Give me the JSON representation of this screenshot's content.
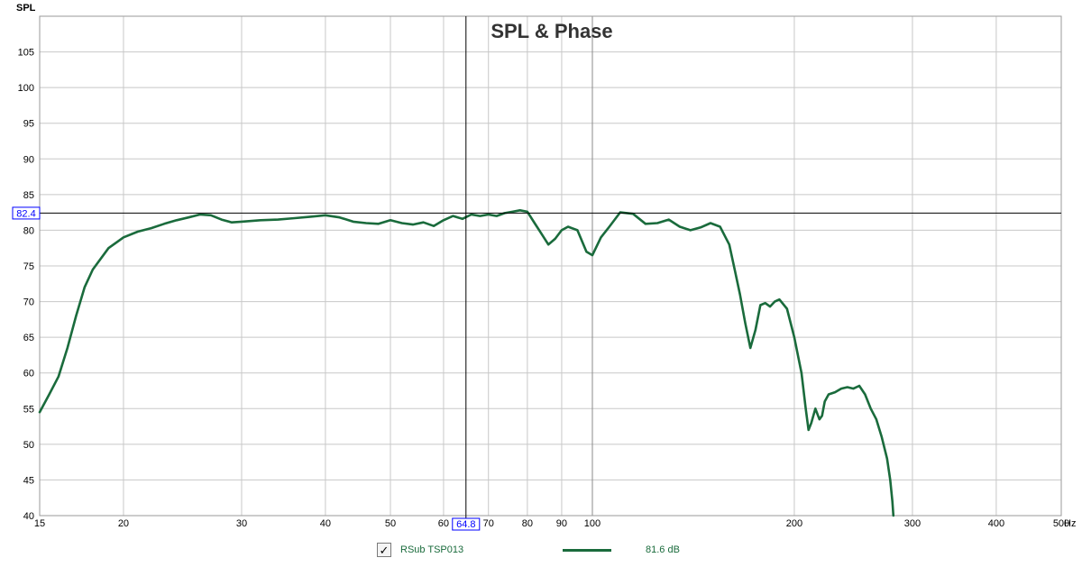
{
  "chart_data": {
    "type": "line",
    "title": "SPL & Phase",
    "ylabel": "SPL",
    "xunit": "Hz",
    "xscale": "log",
    "xlim": [
      15,
      500
    ],
    "ylim": [
      40,
      110
    ],
    "grid": true,
    "colors": {
      "series": "#1a6b3c",
      "cursor_label": "#0000ff",
      "grid": "#c8c8c8"
    },
    "yticks": [
      40,
      45,
      50,
      55,
      60,
      65,
      70,
      75,
      80,
      85,
      90,
      95,
      100,
      105
    ],
    "xticks": [
      15,
      20,
      30,
      40,
      50,
      60,
      70,
      80,
      90,
      100,
      200,
      300,
      400,
      500
    ],
    "xtick_labels": [
      "15",
      "20",
      "30",
      "40",
      "50",
      "60",
      "70",
      "80",
      "90",
      "100",
      "200",
      "300",
      "400",
      "500"
    ],
    "cursor": {
      "x": 64.8,
      "y": 82.4,
      "x_label": "64.8",
      "y_label": "82.4"
    },
    "series": [
      {
        "name": "RSub TSP013",
        "legend_value": "81.6 dB",
        "checked": true,
        "x": [
          15,
          15.5,
          16,
          16.5,
          17,
          17.5,
          18,
          19,
          20,
          21,
          22,
          23,
          24,
          25,
          26,
          27,
          28,
          29,
          30,
          32,
          34,
          36,
          38,
          40,
          42,
          44,
          46,
          48,
          50,
          52,
          54,
          56,
          58,
          60,
          62,
          64,
          66,
          68,
          70,
          72,
          74,
          76,
          78,
          80,
          82,
          84,
          86,
          88,
          90,
          92,
          95,
          98,
          100,
          103,
          106,
          110,
          115,
          120,
          125,
          130,
          135,
          140,
          145,
          150,
          155,
          160,
          163,
          166,
          169,
          172,
          175,
          178,
          181,
          184,
          187,
          190,
          195,
          200,
          205,
          208,
          210,
          212,
          215,
          218,
          220,
          222,
          225,
          230,
          235,
          240,
          245,
          250,
          255,
          260,
          265,
          270,
          275,
          278,
          280,
          281
        ],
        "y": [
          54.5,
          57,
          59.5,
          63.5,
          68,
          72,
          74.5,
          77.5,
          79,
          79.8,
          80.3,
          80.9,
          81.4,
          81.8,
          82.2,
          82.1,
          81.5,
          81.1,
          81.2,
          81.4,
          81.5,
          81.7,
          81.9,
          82.1,
          81.8,
          81.2,
          81.0,
          80.9,
          81.4,
          81.0,
          80.8,
          81.1,
          80.6,
          81.4,
          82.0,
          81.6,
          82.2,
          82.0,
          82.2,
          82.0,
          82.4,
          82.6,
          82.8,
          82.6,
          81.0,
          79.5,
          78.0,
          78.8,
          80.0,
          80.5,
          80.0,
          77.0,
          76.5,
          79.0,
          80.5,
          82.5,
          82.3,
          80.9,
          81.0,
          81.5,
          80.5,
          80.0,
          80.4,
          81.0,
          80.5,
          78.0,
          74.5,
          71.0,
          67.0,
          63.5,
          66.0,
          69.5,
          69.8,
          69.3,
          70.0,
          70.3,
          69.0,
          65.0,
          60.0,
          55.0,
          52.0,
          53.0,
          55.0,
          53.5,
          54.0,
          56.0,
          57.0,
          57.3,
          57.8,
          58.0,
          57.8,
          58.2,
          57.0,
          55.0,
          53.5,
          51.0,
          48.0,
          45.0,
          42.0,
          40.0
        ]
      }
    ]
  }
}
